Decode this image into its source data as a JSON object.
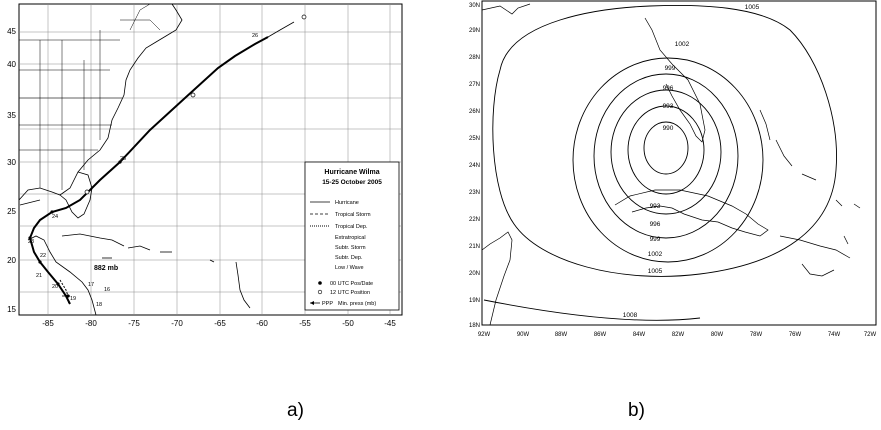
{
  "panel_a": {
    "label": "a)",
    "legend": {
      "title": "Hurricane Wilma",
      "subtitle": "15-25 October 2005",
      "items": [
        "Hurricane",
        "Tropical Storm",
        "Tropical Dep.",
        "Extratropical",
        "Subtr. Storm",
        "Subtr. Dep.",
        "Low / Wave",
        "00 UTC Pos/Date",
        "12 UTC Position",
        "Min. press (mb)"
      ],
      "ppp_marker": "PPP"
    },
    "x_ticks": [
      "-85",
      "-80",
      "-75",
      "-70",
      "-65",
      "-60",
      "-55",
      "-50",
      "-45"
    ],
    "y_ticks": [
      "45",
      "40",
      "35",
      "30",
      "25",
      "20",
      "15"
    ],
    "min_pressure_label": "882 mb",
    "date_labels": [
      "15",
      "16",
      "17",
      "18",
      "19",
      "20",
      "21",
      "22",
      "23",
      "24",
      "25",
      "26"
    ]
  },
  "panel_b": {
    "label": "b)",
    "x_ticks": [
      "92W",
      "90W",
      "88W",
      "86W",
      "84W",
      "82W",
      "80W",
      "78W",
      "76W",
      "74W",
      "72W"
    ],
    "y_ticks": [
      "30N",
      "29N",
      "28N",
      "27N",
      "26N",
      "25N",
      "24N",
      "23N",
      "22N",
      "21N",
      "20N",
      "19N",
      "18N"
    ],
    "contour_labels": [
      "1005",
      "1002",
      "999",
      "996",
      "993",
      "990",
      "993",
      "996",
      "999",
      "1002",
      "1005",
      "1008"
    ]
  }
}
